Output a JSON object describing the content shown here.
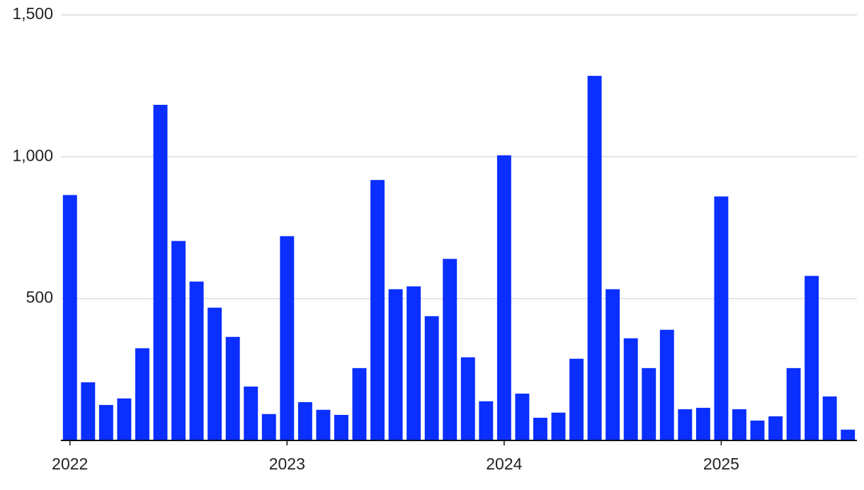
{
  "chart_data": {
    "type": "bar",
    "categories": [
      "2022",
      null,
      null,
      null,
      null,
      null,
      null,
      null,
      null,
      null,
      null,
      null,
      "2023",
      null,
      null,
      null,
      null,
      null,
      null,
      null,
      null,
      null,
      null,
      null,
      "2024",
      null,
      null,
      null,
      null,
      null,
      null,
      null,
      null,
      null,
      null,
      null,
      "2025",
      null,
      null,
      null,
      null,
      null,
      null,
      null
    ],
    "values": [
      865,
      205,
      125,
      148,
      325,
      1183,
      703,
      560,
      468,
      365,
      190,
      93,
      720,
      135,
      108,
      90,
      255,
      918,
      533,
      543,
      438,
      640,
      293,
      138,
      1005,
      165,
      80,
      98,
      288,
      1285,
      533,
      360,
      255,
      390,
      110,
      115,
      860,
      110,
      70,
      85,
      255,
      580,
      155,
      38
    ],
    "color": "#0a2fff",
    "ylim": [
      0,
      1500
    ],
    "yticks": [
      500,
      {
        "value": 1000,
        "label": "1,000"
      },
      {
        "value": 1500,
        "label": "1,500"
      }
    ],
    "grid": true
  }
}
